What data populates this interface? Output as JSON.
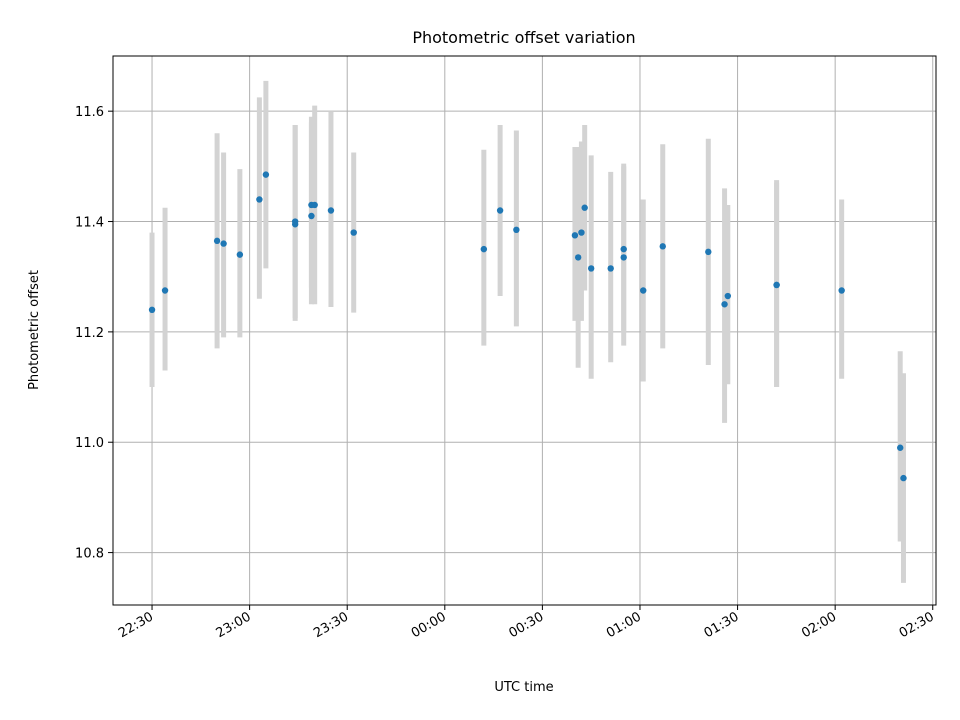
{
  "chart_data": {
    "type": "scatter",
    "title": "Photometric offset variation",
    "xlabel": "UTC time",
    "ylabel": "Photometric offset",
    "x_tick_labels": [
      "22:30",
      "23:00",
      "23:30",
      "00:00",
      "00:30",
      "01:00",
      "01:30",
      "02:00",
      "02:30"
    ],
    "y_tick_labels": [
      "10.8",
      "11.0",
      "11.2",
      "11.4",
      "11.6"
    ],
    "x_ticks": [
      "22:30",
      "23:00",
      "23:30",
      "00:00",
      "00:30",
      "01:00",
      "01:30",
      "02:00",
      "02:30"
    ],
    "y_ticks": [
      10.8,
      11.0,
      11.2,
      11.4,
      11.6
    ],
    "xlim": [
      "22:18",
      "02:31"
    ],
    "ylim": [
      10.705,
      11.7
    ],
    "grid": true,
    "point_color": "#1f77b4",
    "errorbar_color": "#d3d3d3",
    "points": [
      {
        "t": "22:30",
        "y": 11.24,
        "lo": 11.1,
        "hi": 11.38
      },
      {
        "t": "22:34",
        "y": 11.275,
        "lo": 11.13,
        "hi": 11.425
      },
      {
        "t": "22:50",
        "y": 11.365,
        "lo": 11.17,
        "hi": 11.56
      },
      {
        "t": "22:52",
        "y": 11.36,
        "lo": 11.19,
        "hi": 11.525
      },
      {
        "t": "22:57",
        "y": 11.34,
        "lo": 11.19,
        "hi": 11.495
      },
      {
        "t": "23:03",
        "y": 11.44,
        "lo": 11.26,
        "hi": 11.625
      },
      {
        "t": "23:05",
        "y": 11.485,
        "lo": 11.315,
        "hi": 11.655
      },
      {
        "t": "23:14",
        "y": 11.395,
        "lo": 11.22,
        "hi": 11.575
      },
      {
        "t": "23:14",
        "y": 11.4,
        "lo": 11.225,
        "hi": 11.575
      },
      {
        "t": "23:19",
        "y": 11.43,
        "lo": 11.28,
        "hi": 11.59
      },
      {
        "t": "23:19",
        "y": 11.41,
        "lo": 11.25,
        "hi": 11.58
      },
      {
        "t": "23:20",
        "y": 11.43,
        "lo": 11.25,
        "hi": 11.61
      },
      {
        "t": "23:25",
        "y": 11.42,
        "lo": 11.245,
        "hi": 11.6
      },
      {
        "t": "23:32",
        "y": 11.38,
        "lo": 11.235,
        "hi": 11.525
      },
      {
        "t": "00:12",
        "y": 11.35,
        "lo": 11.175,
        "hi": 11.53
      },
      {
        "t": "00:17",
        "y": 11.42,
        "lo": 11.265,
        "hi": 11.575
      },
      {
        "t": "00:22",
        "y": 11.385,
        "lo": 11.21,
        "hi": 11.565
      },
      {
        "t": "00:40",
        "y": 11.375,
        "lo": 11.22,
        "hi": 11.535
      },
      {
        "t": "00:41",
        "y": 11.335,
        "lo": 11.135,
        "hi": 11.535
      },
      {
        "t": "00:42",
        "y": 11.38,
        "lo": 11.22,
        "hi": 11.545
      },
      {
        "t": "00:43",
        "y": 11.425,
        "lo": 11.275,
        "hi": 11.575
      },
      {
        "t": "00:45",
        "y": 11.315,
        "lo": 11.115,
        "hi": 11.52
      },
      {
        "t": "00:51",
        "y": 11.315,
        "lo": 11.145,
        "hi": 11.49
      },
      {
        "t": "00:55",
        "y": 11.35,
        "lo": 11.2,
        "hi": 11.505
      },
      {
        "t": "00:55",
        "y": 11.335,
        "lo": 11.175,
        "hi": 11.5
      },
      {
        "t": "01:01",
        "y": 11.275,
        "lo": 11.11,
        "hi": 11.44
      },
      {
        "t": "01:07",
        "y": 11.355,
        "lo": 11.17,
        "hi": 11.54
      },
      {
        "t": "01:21",
        "y": 11.345,
        "lo": 11.14,
        "hi": 11.55
      },
      {
        "t": "01:26",
        "y": 11.25,
        "lo": 11.035,
        "hi": 11.46
      },
      {
        "t": "01:27",
        "y": 11.265,
        "lo": 11.105,
        "hi": 11.43
      },
      {
        "t": "01:42",
        "y": 11.285,
        "lo": 11.1,
        "hi": 11.475
      },
      {
        "t": "01:42",
        "y": 11.285,
        "lo": 11.1,
        "hi": 11.47
      },
      {
        "t": "02:02",
        "y": 11.275,
        "lo": 11.115,
        "hi": 11.44
      },
      {
        "t": "02:20",
        "y": 10.99,
        "lo": 10.82,
        "hi": 11.165
      },
      {
        "t": "02:21",
        "y": 10.935,
        "lo": 10.745,
        "hi": 11.125
      }
    ]
  }
}
